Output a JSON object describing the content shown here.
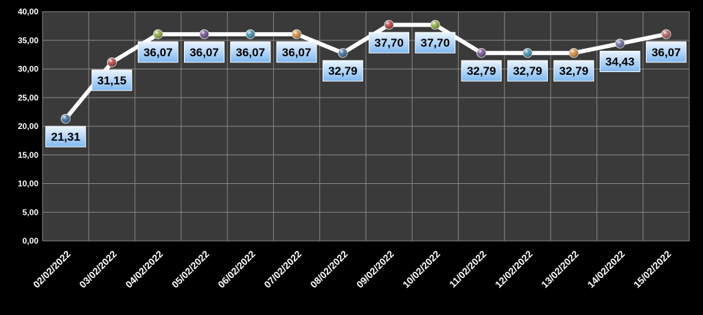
{
  "chart_data": {
    "type": "line",
    "categories": [
      "02/02/2022",
      "03/02/2022",
      "04/02/2022",
      "05/02/2022",
      "06/02/2022",
      "07/02/2022",
      "08/02/2022",
      "09/02/2022",
      "10/02/2022",
      "11/02/2022",
      "12/02/2022",
      "13/02/2022",
      "14/02/2022",
      "15/02/2022"
    ],
    "values": [
      21.31,
      31.15,
      36.07,
      36.07,
      36.07,
      36.07,
      32.79,
      37.7,
      37.7,
      32.79,
      32.79,
      32.79,
      34.43,
      36.07
    ],
    "data_labels": [
      "21,31",
      "31,15",
      "36,07",
      "36,07",
      "36,07",
      "36,07",
      "32,79",
      "37,70",
      "37,70",
      "32,79",
      "32,79",
      "32,79",
      "34,43",
      "36,07"
    ],
    "ylim": [
      0,
      40
    ],
    "yticks": [
      "0,00",
      "5,00",
      "10,00",
      "15,00",
      "20,00",
      "25,00",
      "30,00",
      "35,00",
      "40,00"
    ],
    "grid": true,
    "title": "",
    "xlabel": "",
    "ylabel": "",
    "colors": {
      "background": "#000000",
      "plot_area": "#3a3a3a",
      "grid": "#8a8a8a",
      "line": "#ffffff",
      "label_fill_top": "#eaf4ff",
      "label_fill_bottom": "#7fb8f0",
      "marker_colors": [
        "#3b6a9a",
        "#b03a3a",
        "#8aa83a",
        "#6a4a8a",
        "#3a8aa8",
        "#d08a3a",
        "#3b6a9a",
        "#b03a3a",
        "#8aa83a",
        "#6a4a8a",
        "#3a8aa8",
        "#d08a3a",
        "#6a6a9a",
        "#b05a5a"
      ]
    }
  }
}
